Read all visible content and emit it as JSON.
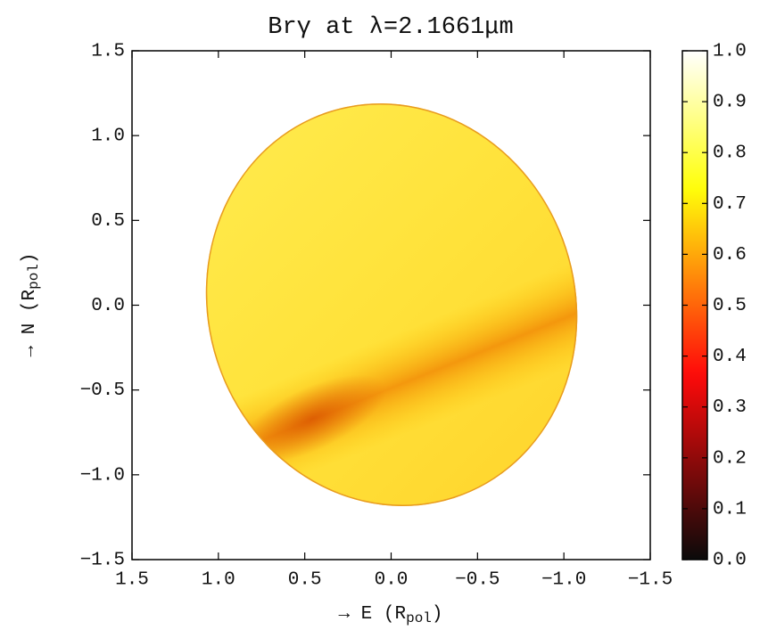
{
  "chart_data": {
    "type": "image",
    "title": "Brγ at λ=2.1661μm",
    "xlabel_parts": [
      "→ E (R",
      "pol",
      ")"
    ],
    "ylabel_parts": [
      "→ N (R",
      "pol",
      ")"
    ],
    "xlim": [
      1.5,
      -1.5
    ],
    "ylim": [
      -1.5,
      1.5
    ],
    "xticks": [
      1.5,
      {
        "value": 1,
        "label": "1.0"
      },
      0.5,
      {
        "value": 0,
        "label": "0.0"
      },
      {
        "value": -0.5,
        "label": "−0.5"
      },
      {
        "value": -1,
        "label": "−1.0"
      },
      {
        "value": -1.5,
        "label": "−1.5"
      }
    ],
    "yticks": [
      {
        "value": -1.5,
        "label": "−1.5"
      },
      {
        "value": -1,
        "label": "−1.0"
      },
      {
        "value": -0.5,
        "label": "−0.5"
      },
      {
        "value": 0,
        "label": "0.0"
      },
      0.5,
      {
        "value": 1,
        "label": "1.0"
      },
      1.5
    ],
    "colormap": "hot",
    "clim": [
      0,
      1
    ],
    "cticks": [
      {
        "value": 0,
        "label": "0.0"
      },
      0.1,
      0.2,
      0.3,
      0.4,
      0.5,
      0.6,
      0.7,
      0.8,
      0.9,
      {
        "value": 1,
        "label": "1.0"
      }
    ]
  }
}
